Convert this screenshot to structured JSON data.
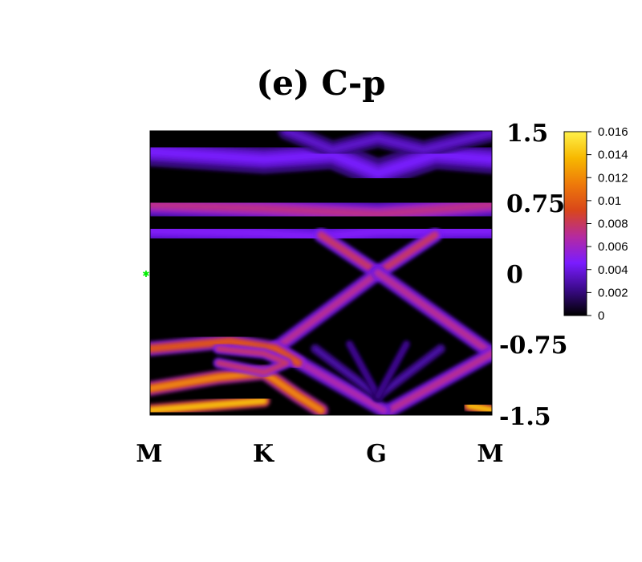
{
  "chart_data": {
    "type": "heatmap",
    "title": "(e) C-p",
    "x_ticks": [
      "M",
      "K",
      "G",
      "M"
    ],
    "y_ticks": [
      "1.5",
      "0.75",
      "0",
      "-0.75",
      "-1.5"
    ],
    "ylim": [
      -1.5,
      1.5
    ],
    "colorbar": {
      "ticks": [
        "0.016",
        "0.014",
        "0.012",
        "0.01",
        "0.008",
        "0.006",
        "0.004",
        "0.002",
        "0"
      ],
      "range": [
        0,
        0.016
      ],
      "colormap": [
        "#000000",
        "#3b0a8a",
        "#7a1cff",
        "#b52aa0",
        "#d9461a",
        "#ee7a0a",
        "#f7b800",
        "#fff14a"
      ]
    },
    "bands": [
      {
        "name": "upper-violet-arc",
        "points": [
          [
            0,
            1.28
          ],
          [
            1,
            1.2
          ],
          [
            1.6,
            1.25
          ],
          [
            2,
            1.05
          ],
          [
            2.5,
            1.25
          ],
          [
            3,
            1.2
          ]
        ],
        "intensity": 0.28,
        "width": 0.14
      },
      {
        "name": "upper-violet-arc-2",
        "points": [
          [
            1.2,
            1.5
          ],
          [
            1.6,
            1.3
          ],
          [
            2,
            1.42
          ],
          [
            2.4,
            1.3
          ],
          [
            3,
            1.48
          ]
        ],
        "intensity": 0.22,
        "width": 0.09
      },
      {
        "name": "flat-red-band",
        "points": [
          [
            0,
            0.72
          ],
          [
            1,
            0.68
          ],
          [
            2,
            0.62
          ],
          [
            3,
            0.72
          ]
        ],
        "intensity": 0.45,
        "width": 0.12
      },
      {
        "name": "flat-violet-band",
        "points": [
          [
            0,
            0.45
          ],
          [
            1,
            0.42
          ],
          [
            1.5,
            0.38
          ],
          [
            2,
            0.44
          ],
          [
            3,
            0.45
          ]
        ],
        "intensity": 0.3,
        "width": 0.14
      },
      {
        "name": "cone-upper-left",
        "points": [
          [
            1.5,
            0.4
          ],
          [
            2,
            0.0
          ]
        ],
        "intensity": 0.5,
        "width": 0.07
      },
      {
        "name": "cone-upper-right",
        "points": [
          [
            2,
            0.0
          ],
          [
            2.5,
            0.4
          ]
        ],
        "intensity": 0.5,
        "width": 0.07
      },
      {
        "name": "cone-left",
        "points": [
          [
            1.1,
            -0.8
          ],
          [
            2,
            0.0
          ]
        ],
        "intensity": 0.45,
        "width": 0.07
      },
      {
        "name": "cone-right",
        "points": [
          [
            2,
            0.0
          ],
          [
            3,
            -0.85
          ]
        ],
        "intensity": 0.45,
        "width": 0.07
      },
      {
        "name": "lower-right-v",
        "points": [
          [
            2.1,
            -1.45
          ],
          [
            3,
            -0.85
          ]
        ],
        "intensity": 0.45,
        "width": 0.07
      },
      {
        "name": "lower-left-v",
        "points": [
          [
            1.1,
            -0.8
          ],
          [
            2.05,
            -1.45
          ]
        ],
        "intensity": 0.42,
        "width": 0.07
      },
      {
        "name": "left-bright-band",
        "points": [
          [
            0,
            -0.8
          ],
          [
            0.7,
            -0.72
          ],
          [
            1.1,
            -0.8
          ],
          [
            1.3,
            -0.95
          ]
        ],
        "intensity": 0.62,
        "width": 0.07
      },
      {
        "name": "left-lower-band",
        "points": [
          [
            0,
            -1.22
          ],
          [
            0.6,
            -1.1
          ],
          [
            1.0,
            -1.05
          ],
          [
            1.3,
            -1.3
          ],
          [
            1.5,
            -1.45
          ]
        ],
        "intensity": 0.75,
        "width": 0.07
      },
      {
        "name": "bottom-edge-left",
        "points": [
          [
            0,
            -1.45
          ],
          [
            0.5,
            -1.4
          ],
          [
            1,
            -1.35
          ]
        ],
        "intensity": 0.9,
        "width": 0.06
      },
      {
        "name": "bottom-edge-right",
        "points": [
          [
            2.8,
            -1.4
          ],
          [
            3,
            -1.45
          ]
        ],
        "intensity": 0.9,
        "width": 0.06
      },
      {
        "name": "k-loop",
        "points": [
          [
            0.6,
            -0.8
          ],
          [
            1.0,
            -0.85
          ],
          [
            1.2,
            -0.95
          ],
          [
            1.0,
            -1.05
          ],
          [
            0.6,
            -0.95
          ]
        ],
        "intensity": 0.5,
        "width": 0.05
      },
      {
        "name": "fan-1",
        "points": [
          [
            1.45,
            -0.8
          ],
          [
            2,
            -1.3
          ]
        ],
        "intensity": 0.18,
        "width": 0.05
      },
      {
        "name": "fan-2",
        "points": [
          [
            2.55,
            -0.8
          ],
          [
            2,
            -1.3
          ]
        ],
        "intensity": 0.18,
        "width": 0.05
      },
      {
        "name": "fan-3",
        "points": [
          [
            1.75,
            -0.75
          ],
          [
            2,
            -1.3
          ]
        ],
        "intensity": 0.16,
        "width": 0.04
      },
      {
        "name": "fan-4",
        "points": [
          [
            2.25,
            -0.75
          ],
          [
            2,
            -1.3
          ]
        ],
        "intensity": 0.16,
        "width": 0.04
      }
    ],
    "marker": {
      "label": "fermi-marker",
      "color": "#00ee00"
    }
  }
}
